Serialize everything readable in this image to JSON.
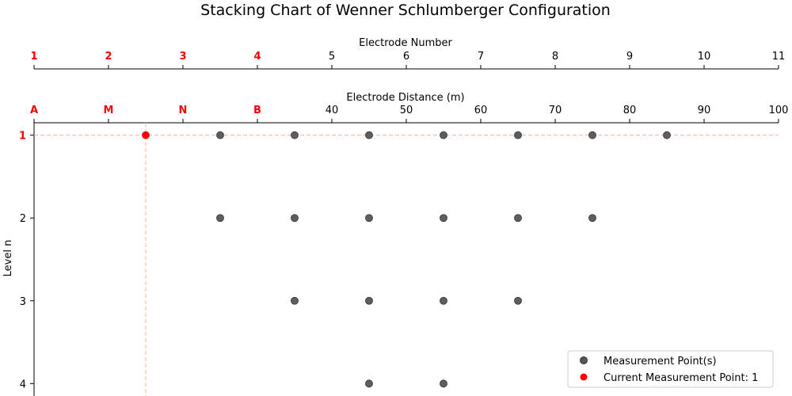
{
  "chart_data": {
    "type": "scatter",
    "title": "Stacking Chart of Wenner Schlumberger Configuration",
    "top_axis": {
      "label": "Electrode Number",
      "ticks": [
        "1",
        "2",
        "3",
        "4",
        "5",
        "6",
        "7",
        "8",
        "9",
        "10",
        "11"
      ],
      "highlighted_ticks": [
        0,
        1,
        2,
        3
      ]
    },
    "distance_axis": {
      "label": "Electrode Distance (m)",
      "range": [
        0,
        100
      ],
      "ticks": [
        0,
        10,
        20,
        30,
        40,
        50,
        60,
        70,
        80,
        90,
        100
      ],
      "tick_labels": [
        "A",
        "M",
        "N",
        "B",
        "40",
        "50",
        "60",
        "70",
        "80",
        "90",
        "100"
      ],
      "highlighted_ticks": [
        0,
        1,
        2,
        3
      ]
    },
    "y_axis": {
      "label": "Level n",
      "ticks": [
        1,
        2,
        3,
        4
      ],
      "tick_labels": [
        "1",
        "2",
        "3",
        "4"
      ],
      "highlighted_ticks": [
        0
      ],
      "range": [
        0.85,
        4.15
      ],
      "inverted": true
    },
    "series": [
      {
        "name": "Measurement Point(s)",
        "color": "#555555",
        "points": [
          {
            "x": 25,
            "y": 1
          },
          {
            "x": 35,
            "y": 1
          },
          {
            "x": 45,
            "y": 1
          },
          {
            "x": 55,
            "y": 1
          },
          {
            "x": 65,
            "y": 1
          },
          {
            "x": 75,
            "y": 1
          },
          {
            "x": 85,
            "y": 1
          },
          {
            "x": 25,
            "y": 2
          },
          {
            "x": 35,
            "y": 2
          },
          {
            "x": 45,
            "y": 2
          },
          {
            "x": 55,
            "y": 2
          },
          {
            "x": 65,
            "y": 2
          },
          {
            "x": 75,
            "y": 2
          },
          {
            "x": 35,
            "y": 3
          },
          {
            "x": 45,
            "y": 3
          },
          {
            "x": 55,
            "y": 3
          },
          {
            "x": 65,
            "y": 3
          },
          {
            "x": 45,
            "y": 4
          },
          {
            "x": 55,
            "y": 4
          }
        ]
      },
      {
        "name": "Current Measurement Point: 1",
        "color": "#ff0000",
        "points": [
          {
            "x": 15,
            "y": 1
          }
        ]
      }
    ],
    "crosshair": {
      "x": 15,
      "y": 1,
      "color": "#f4b0a0"
    },
    "legend_position": "bottom-right"
  }
}
